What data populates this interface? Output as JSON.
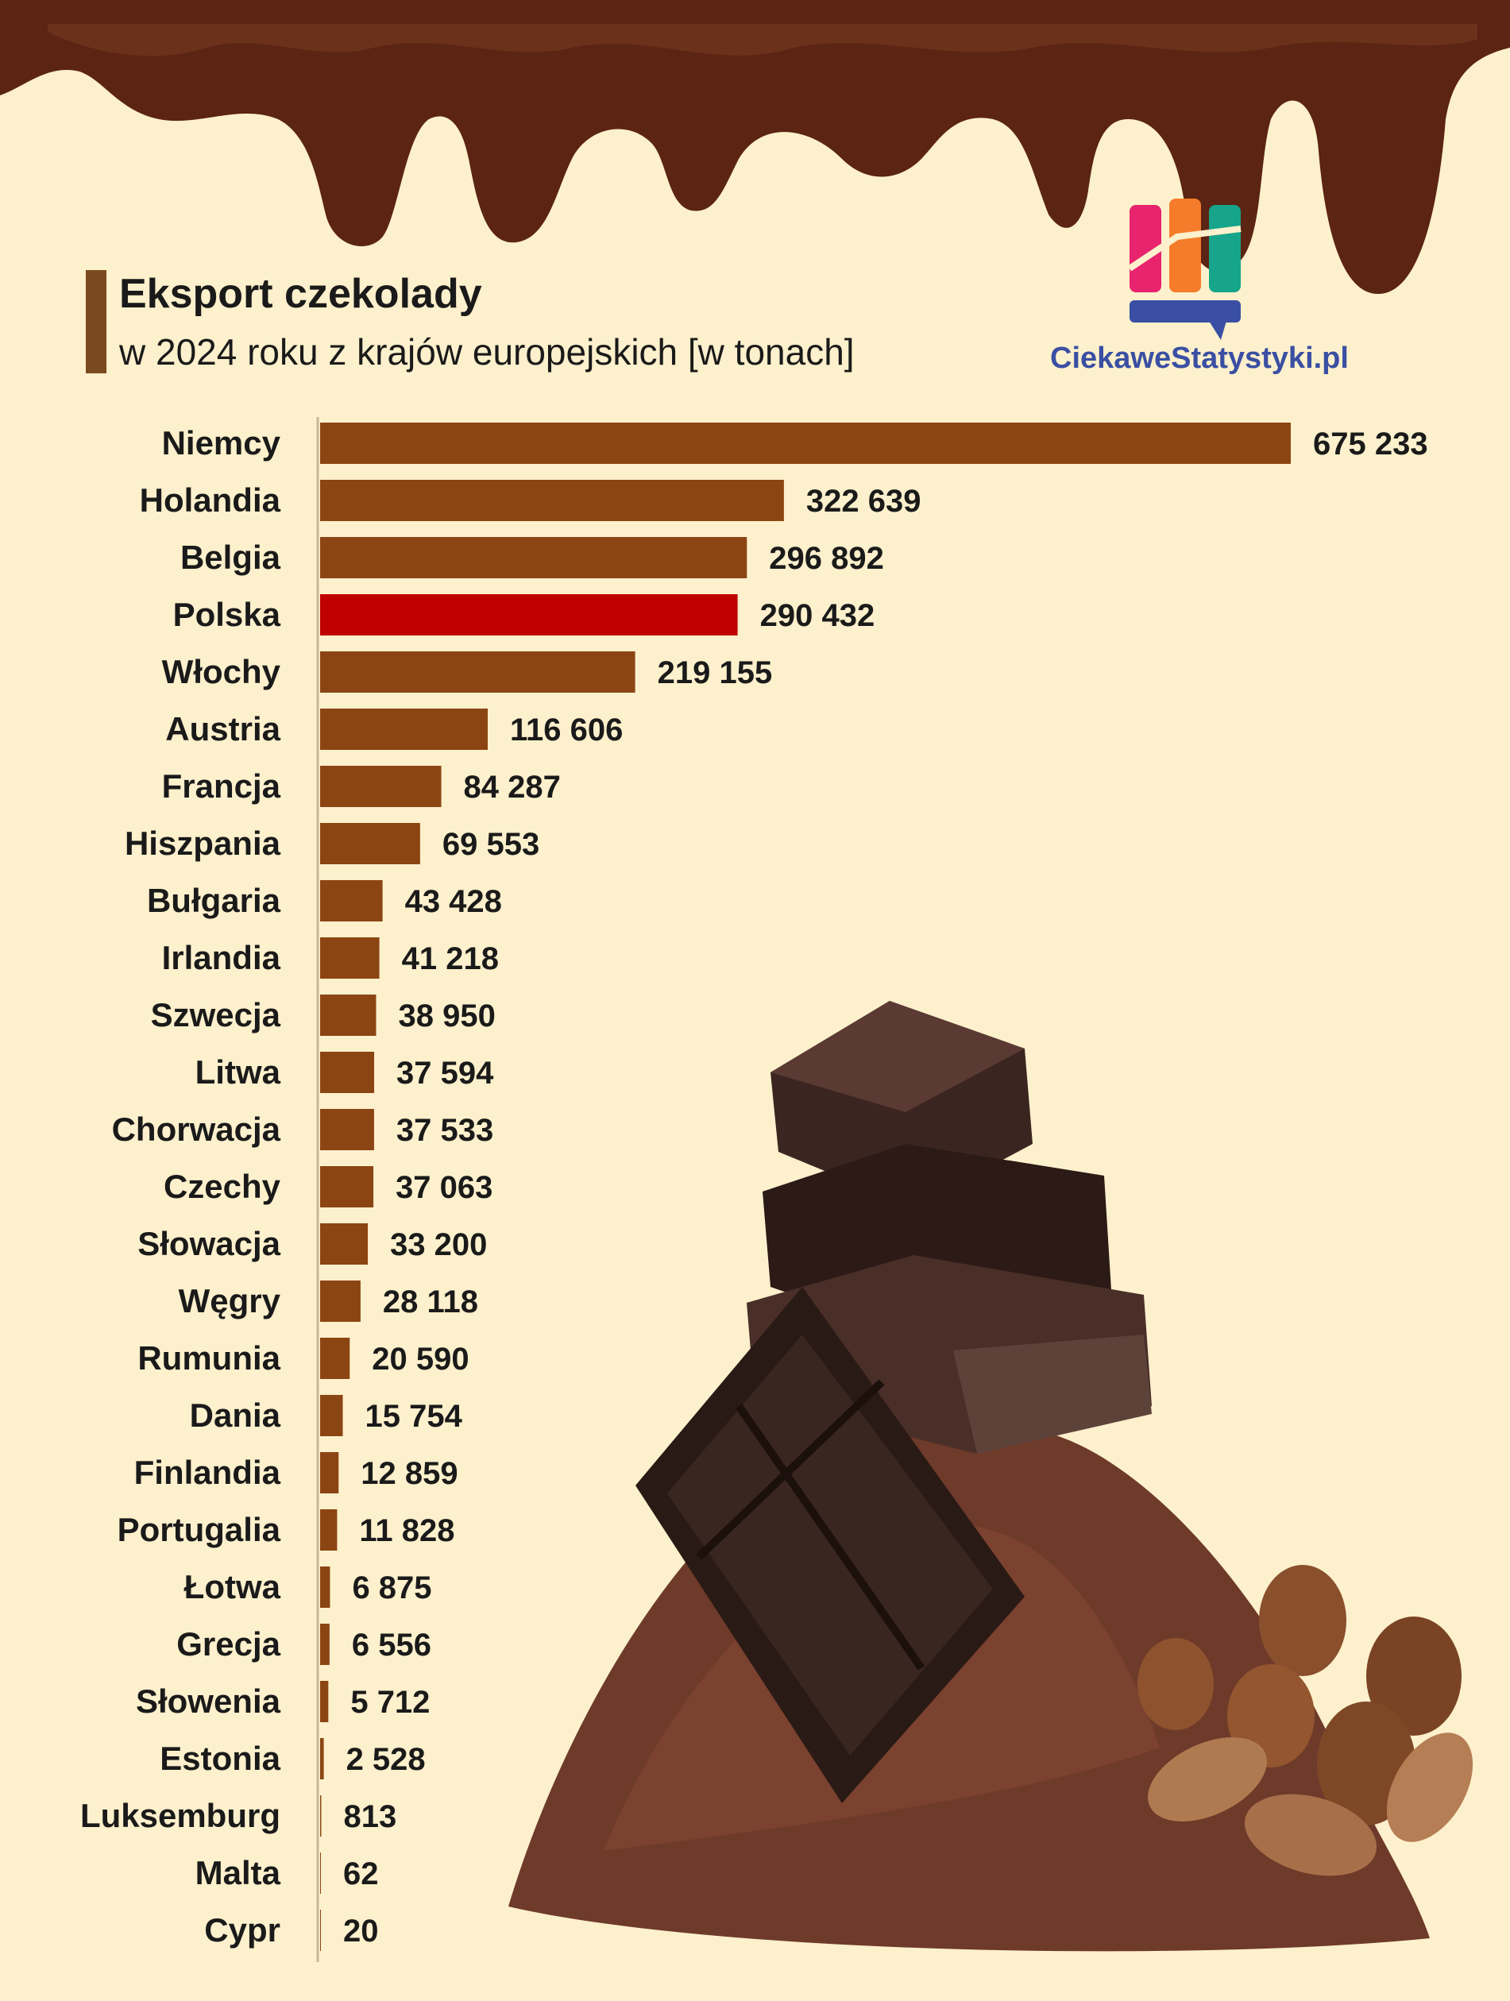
{
  "title": "Eksport czekolady",
  "subtitle": "w 2024 roku z krajów europejskich [w tonach]",
  "logo": {
    "text": "CiekaweStatystyki.pl",
    "icon": "bar-chart-logo-icon"
  },
  "colors": {
    "bar": "#8b4513",
    "highlight": "#c00000",
    "background": "#fdf0cc",
    "chocolate": "#5b2413"
  },
  "chart_data": {
    "type": "bar",
    "orientation": "horizontal",
    "highlight": "Polska",
    "categories": [
      "Niemcy",
      "Holandia",
      "Belgia",
      "Polska",
      "Włochy",
      "Austria",
      "Francja",
      "Hiszpania",
      "Bułgaria",
      "Irlandia",
      "Szwecja",
      "Litwa",
      "Chorwacja",
      "Czechy",
      "Słowacja",
      "Węgry",
      "Rumunia",
      "Dania",
      "Finlandia",
      "Portugalia",
      "Łotwa",
      "Grecja",
      "Słowenia",
      "Estonia",
      "Luksemburg",
      "Malta",
      "Cypr"
    ],
    "values": [
      675233,
      322639,
      296892,
      290432,
      219155,
      116606,
      84287,
      69553,
      43428,
      41218,
      38950,
      37594,
      37533,
      37063,
      33200,
      28118,
      20590,
      15754,
      12859,
      11828,
      6875,
      6556,
      5712,
      2528,
      813,
      62,
      20
    ],
    "value_labels": [
      "675 233",
      "322 639",
      "296 892",
      "290 432",
      "219 155",
      "116 606",
      "84 287",
      "69 553",
      "43 428",
      "41 218",
      "38 950",
      "37 594",
      "37 533",
      "37 063",
      "33 200",
      "28 118",
      "20 590",
      "15 754",
      "12 859",
      "11 828",
      "6 875",
      "6 556",
      "5 712",
      "2 528",
      "813",
      "62",
      "20"
    ]
  }
}
